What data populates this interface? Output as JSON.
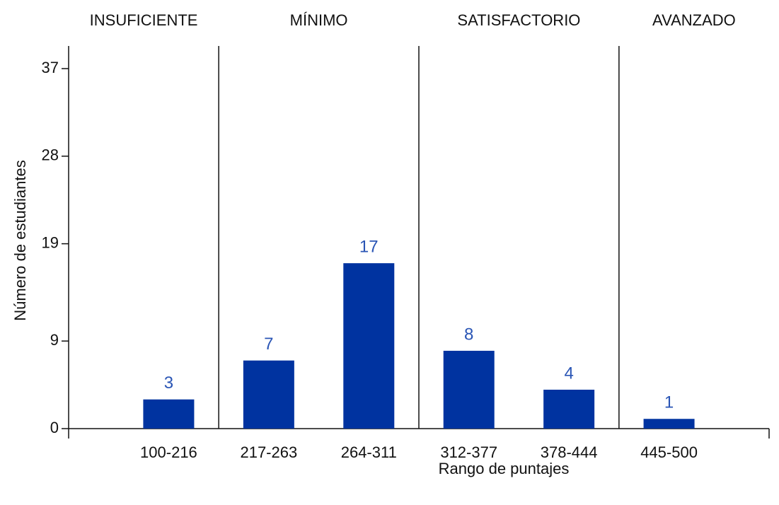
{
  "chart_data": {
    "type": "bar",
    "xlabel": "Rango de puntajes",
    "ylabel": "Número de estudiantes",
    "categories": [
      "100-216",
      "217-263",
      "264-311",
      "312-377",
      "378-444",
      "445-500"
    ],
    "values": [
      3,
      7,
      17,
      8,
      4,
      1
    ],
    "color": "#0033a0",
    "label_color": "#2a55b5",
    "ylim": [
      0,
      37
    ],
    "yticks": [
      0,
      9,
      19,
      28,
      37
    ],
    "regions": [
      {
        "name": "INSUFICIENTE",
        "categories": [
          "100-216"
        ]
      },
      {
        "name": "MÍNIMO",
        "categories": [
          "217-263",
          "264-311"
        ]
      },
      {
        "name": "SATISFACTORIO",
        "categories": [
          "312-377",
          "378-444"
        ]
      },
      {
        "name": "AVANZADO",
        "categories": [
          "445-500"
        ]
      }
    ]
  }
}
